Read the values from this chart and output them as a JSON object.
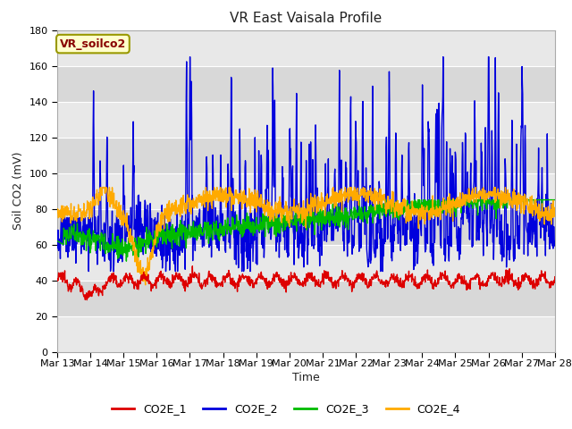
{
  "title": "VR East Vaisala Profile",
  "ylabel": "Soil CO2 (mV)",
  "xlabel": "Time",
  "ylim": [
    0,
    180
  ],
  "yticks": [
    0,
    20,
    40,
    60,
    80,
    100,
    120,
    140,
    160,
    180
  ],
  "annotation": "VR_soilco2",
  "x_labels": [
    "Mar 13",
    "Mar 14",
    "Mar 15",
    "Mar 16",
    "Mar 17",
    "Mar 18",
    "Mar 19",
    "Mar 20",
    "Mar 21",
    "Mar 22",
    "Mar 23",
    "Mar 24",
    "Mar 25",
    "Mar 26",
    "Mar 27",
    "Mar 28"
  ],
  "series": {
    "CO2E_1": {
      "color": "#dd0000",
      "lw": 1.0
    },
    "CO2E_2": {
      "color": "#0000dd",
      "lw": 1.0
    },
    "CO2E_3": {
      "color": "#00bb00",
      "lw": 1.0
    },
    "CO2E_4": {
      "color": "#ffaa00",
      "lw": 1.0
    }
  },
  "fig_bg": "#ffffff",
  "plot_bg": "#e8e8e8",
  "band_color": "#d0d0d0",
  "grid_color": "#ffffff",
  "annotation_box_color": "#ffffcc",
  "annotation_border_color": "#999900",
  "annotation_text_color": "#880000",
  "spine_color": "#aaaaaa"
}
